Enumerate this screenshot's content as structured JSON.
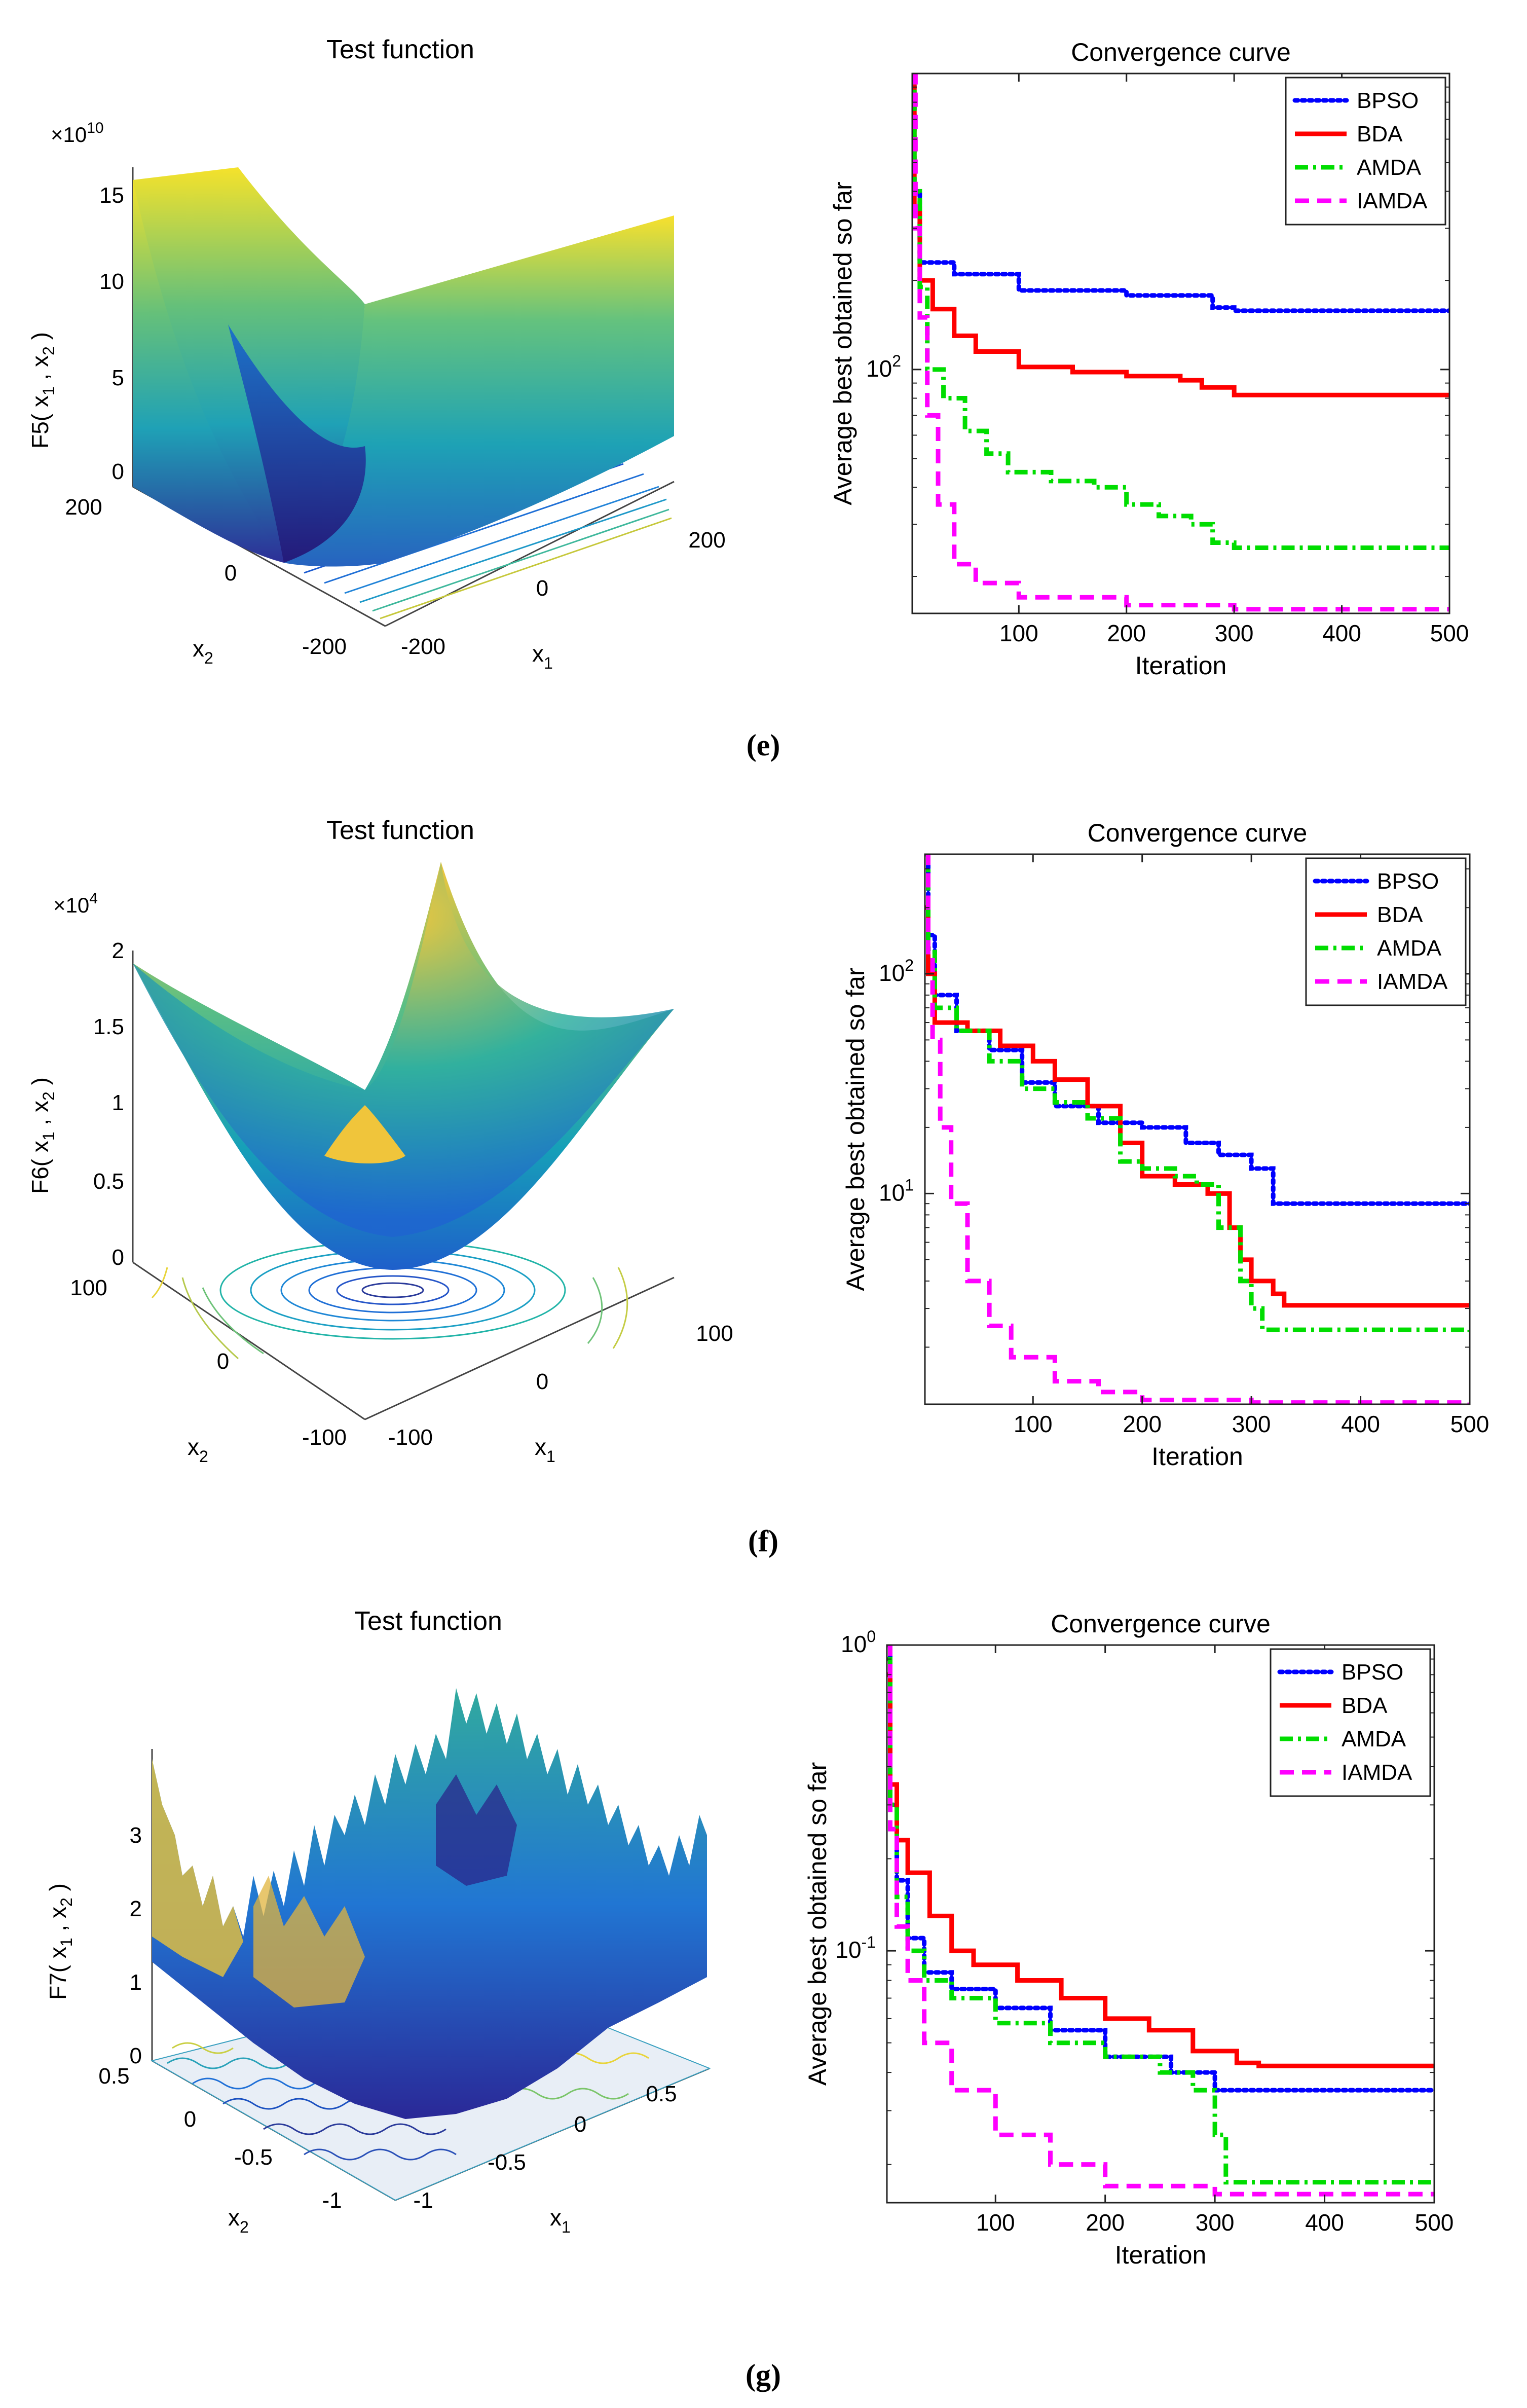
{
  "colors": {
    "bpso": "#0000ff",
    "bda": "#ff0000",
    "amda": "#00dd00",
    "iamda": "#ff00ff"
  },
  "chart_data": [
    {
      "panel": "e",
      "type": "surface",
      "title": "Test function",
      "zlabel": "F5( x",
      "zlabel_sub1": "1",
      "zlabel_mid": " , x",
      "zlabel_sub2": "2",
      "zlabel_end": " )",
      "xlabel": "x",
      "xlabel_sub": "1",
      "ylabel": "x",
      "ylabel_sub": "2",
      "zscale_label": "×10",
      "zscale_exp": "10",
      "zticks": [
        "0",
        "5",
        "10",
        "15"
      ],
      "xticks": [
        "-200",
        "0",
        "200"
      ],
      "yticks": [
        "200",
        "0",
        "-200"
      ],
      "xlim": [
        -200,
        200
      ],
      "ylim": [
        -200,
        200
      ],
      "zlim": [
        0,
        160000000000.0
      ]
    },
    {
      "panel": "e",
      "type": "line",
      "yscale": "log",
      "title": "Convergence curve",
      "xlabel": "Iteration",
      "ylabel": "Average best obtained so far",
      "xlim": [
        1,
        500
      ],
      "ylim": [
        15,
        1000
      ],
      "xticks": [
        100,
        200,
        300,
        400,
        500
      ],
      "xtick_labels": [
        "100",
        "200",
        "300",
        "400",
        "500"
      ],
      "yticks": [
        100
      ],
      "ytick_base": "10",
      "ytick_exp": [
        "2"
      ],
      "legend_position": "top-right",
      "series": [
        {
          "name": "BPSO",
          "style": "dotted",
          "color_key": "bpso",
          "points": [
            [
              1,
              1000
            ],
            [
              3,
              400
            ],
            [
              8,
              230
            ],
            [
              40,
              210
            ],
            [
              100,
              185
            ],
            [
              200,
              178
            ],
            [
              280,
              162
            ],
            [
              300,
              158
            ],
            [
              500,
              158
            ]
          ]
        },
        {
          "name": "BDA",
          "style": "solid",
          "color_key": "bda",
          "points": [
            [
              1,
              1000
            ],
            [
              3,
              350
            ],
            [
              8,
              200
            ],
            [
              20,
              160
            ],
            [
              40,
              130
            ],
            [
              60,
              115
            ],
            [
              100,
              102
            ],
            [
              150,
              98
            ],
            [
              200,
              95
            ],
            [
              250,
              92
            ],
            [
              270,
              87
            ],
            [
              300,
              82
            ],
            [
              500,
              82
            ]
          ]
        },
        {
          "name": "AMDA",
          "style": "dashdot",
          "color_key": "amda",
          "points": [
            [
              1,
              1000
            ],
            [
              3,
              400
            ],
            [
              8,
              190
            ],
            [
              15,
              100
            ],
            [
              30,
              80
            ],
            [
              50,
              62
            ],
            [
              70,
              52
            ],
            [
              90,
              45
            ],
            [
              130,
              42
            ],
            [
              170,
              40
            ],
            [
              200,
              35
            ],
            [
              230,
              32
            ],
            [
              260,
              30
            ],
            [
              280,
              26
            ],
            [
              300,
              25
            ],
            [
              500,
              25
            ]
          ]
        },
        {
          "name": "IAMDA",
          "style": "dashed",
          "color_key": "iamda",
          "points": [
            [
              1,
              1000
            ],
            [
              4,
              300
            ],
            [
              8,
              150
            ],
            [
              15,
              70
            ],
            [
              25,
              35
            ],
            [
              40,
              22
            ],
            [
              60,
              19
            ],
            [
              100,
              17
            ],
            [
              200,
              16
            ],
            [
              300,
              15.5
            ],
            [
              500,
              15.3
            ]
          ]
        }
      ]
    },
    {
      "panel": "f",
      "type": "surface",
      "title": "Test function",
      "zlabel": "F6( x",
      "zlabel_sub1": "1",
      "zlabel_mid": " , x",
      "zlabel_sub2": "2",
      "zlabel_end": " )",
      "xlabel": "x",
      "xlabel_sub": "1",
      "ylabel": "x",
      "ylabel_sub": "2",
      "zscale_label": "×10",
      "zscale_exp": "4",
      "zticks": [
        "0",
        "0.5",
        "1",
        "1.5",
        "2"
      ],
      "xticks": [
        "-100",
        "0",
        "100"
      ],
      "yticks": [
        "100",
        "0",
        "-100"
      ],
      "xlim": [
        -100,
        100
      ],
      "ylim": [
        -100,
        100
      ],
      "zlim": [
        0,
        20000
      ]
    },
    {
      "panel": "f",
      "type": "line",
      "yscale": "log",
      "title": "Convergence curve",
      "xlabel": "Iteration",
      "ylabel": "Average best obtained so far",
      "xlim": [
        1,
        500
      ],
      "ylim": [
        1.1,
        350
      ],
      "xticks": [
        100,
        200,
        300,
        400,
        500
      ],
      "xtick_labels": [
        "100",
        "200",
        "300",
        "400",
        "500"
      ],
      "yticks": [
        10,
        100
      ],
      "ytick_base": "10",
      "ytick_exp": [
        "1",
        "2"
      ],
      "legend_position": "top-right",
      "series": [
        {
          "name": "BPSO",
          "style": "dotted",
          "color_key": "bpso",
          "points": [
            [
              1,
              350
            ],
            [
              4,
              150
            ],
            [
              10,
              80
            ],
            [
              30,
              55
            ],
            [
              60,
              45
            ],
            [
              90,
              32
            ],
            [
              120,
              25
            ],
            [
              160,
              21
            ],
            [
              200,
              20
            ],
            [
              240,
              17
            ],
            [
              270,
              15
            ],
            [
              300,
              13
            ],
            [
              320,
              9
            ],
            [
              500,
              9
            ]
          ]
        },
        {
          "name": "BDA",
          "style": "solid",
          "color_key": "bda",
          "points": [
            [
              1,
              200
            ],
            [
              4,
              100
            ],
            [
              10,
              60
            ],
            [
              40,
              55
            ],
            [
              70,
              47
            ],
            [
              100,
              40
            ],
            [
              120,
              33
            ],
            [
              150,
              25
            ],
            [
              180,
              17
            ],
            [
              200,
              12
            ],
            [
              230,
              11
            ],
            [
              260,
              10
            ],
            [
              280,
              7
            ],
            [
              290,
              5
            ],
            [
              300,
              4
            ],
            [
              320,
              3.5
            ],
            [
              330,
              3.1
            ],
            [
              500,
              3.1
            ]
          ]
        },
        {
          "name": "AMDA",
          "style": "dashdot",
          "color_key": "amda",
          "points": [
            [
              1,
              350
            ],
            [
              4,
              130
            ],
            [
              10,
              70
            ],
            [
              30,
              55
            ],
            [
              60,
              40
            ],
            [
              90,
              30
            ],
            [
              120,
              26
            ],
            [
              150,
              22
            ],
            [
              180,
              14
            ],
            [
              200,
              13
            ],
            [
              230,
              12
            ],
            [
              250,
              11
            ],
            [
              270,
              7
            ],
            [
              290,
              4
            ],
            [
              300,
              3
            ],
            [
              310,
              2.4
            ],
            [
              500,
              2.3
            ]
          ]
        },
        {
          "name": "IAMDA",
          "style": "dashed",
          "color_key": "iamda",
          "points": [
            [
              1,
              350
            ],
            [
              4,
              120
            ],
            [
              8,
              50
            ],
            [
              15,
              20
            ],
            [
              25,
              9
            ],
            [
              40,
              4
            ],
            [
              60,
              2.5
            ],
            [
              80,
              1.8
            ],
            [
              120,
              1.4
            ],
            [
              160,
              1.25
            ],
            [
              200,
              1.15
            ],
            [
              300,
              1.12
            ],
            [
              500,
              1.1
            ]
          ]
        }
      ]
    },
    {
      "panel": "g",
      "type": "surface",
      "title": "Test function",
      "zlabel": "F7( x",
      "zlabel_sub1": "1",
      "zlabel_mid": " , x",
      "zlabel_sub2": "2",
      "zlabel_end": " )",
      "xlabel": "x",
      "xlabel_sub": "1",
      "ylabel": "x",
      "ylabel_sub": "2",
      "zscale_label": "",
      "zscale_exp": "",
      "zticks": [
        "0",
        "1",
        "2",
        "3"
      ],
      "xticks": [
        "-1",
        "-0.5",
        "0",
        "0.5"
      ],
      "yticks": [
        "0.5",
        "0",
        "-0.5",
        "-1"
      ],
      "xlim": [
        -1,
        1
      ],
      "ylim": [
        -1,
        1
      ],
      "zlim": [
        0,
        4
      ]
    },
    {
      "panel": "g",
      "type": "line",
      "yscale": "log",
      "title": "Convergence curve",
      "xlabel": "Iteration",
      "ylabel": "Average best obtained so far",
      "xlim": [
        1,
        500
      ],
      "ylim": [
        0.015,
        1.0
      ],
      "xticks": [
        100,
        200,
        300,
        400,
        500
      ],
      "xtick_labels": [
        "100",
        "200",
        "300",
        "400",
        "500"
      ],
      "yticks": [
        0.1,
        1
      ],
      "ytick_base": "10",
      "ytick_exp": [
        "-1",
        "0"
      ],
      "legend_position": "top-right",
      "series": [
        {
          "name": "BPSO",
          "style": "dotted",
          "color_key": "bpso",
          "points": [
            [
              1,
              1.0
            ],
            [
              4,
              0.3
            ],
            [
              10,
              0.17
            ],
            [
              20,
              0.11
            ],
            [
              35,
              0.085
            ],
            [
              60,
              0.075
            ],
            [
              100,
              0.065
            ],
            [
              150,
              0.055
            ],
            [
              200,
              0.045
            ],
            [
              260,
              0.04
            ],
            [
              300,
              0.035
            ],
            [
              500,
              0.035
            ]
          ]
        },
        {
          "name": "BDA",
          "style": "solid",
          "color_key": "bda",
          "points": [
            [
              1,
              0.8
            ],
            [
              4,
              0.35
            ],
            [
              10,
              0.23
            ],
            [
              20,
              0.18
            ],
            [
              40,
              0.13
            ],
            [
              60,
              0.1
            ],
            [
              80,
              0.09
            ],
            [
              120,
              0.08
            ],
            [
              160,
              0.07
            ],
            [
              200,
              0.06
            ],
            [
              240,
              0.055
            ],
            [
              280,
              0.047
            ],
            [
              320,
              0.043
            ],
            [
              340,
              0.042
            ],
            [
              500,
              0.042
            ]
          ]
        },
        {
          "name": "AMDA",
          "style": "dashdot",
          "color_key": "amda",
          "points": [
            [
              1,
              0.9
            ],
            [
              4,
              0.3
            ],
            [
              10,
              0.15
            ],
            [
              20,
              0.1
            ],
            [
              35,
              0.08
            ],
            [
              60,
              0.07
            ],
            [
              100,
              0.058
            ],
            [
              150,
              0.05
            ],
            [
              200,
              0.045
            ],
            [
              250,
              0.04
            ],
            [
              280,
              0.035
            ],
            [
              300,
              0.025
            ],
            [
              310,
              0.0175
            ],
            [
              500,
              0.0175
            ]
          ]
        },
        {
          "name": "IAMDA",
          "style": "dashed",
          "color_key": "iamda",
          "points": [
            [
              1,
              1.0
            ],
            [
              4,
              0.25
            ],
            [
              10,
              0.12
            ],
            [
              20,
              0.08
            ],
            [
              35,
              0.05
            ],
            [
              60,
              0.035
            ],
            [
              100,
              0.025
            ],
            [
              150,
              0.02
            ],
            [
              200,
              0.017
            ],
            [
              300,
              0.016
            ],
            [
              500,
              0.016
            ]
          ]
        }
      ]
    }
  ],
  "captions": [
    "(e)",
    "(f)",
    "(g)"
  ]
}
